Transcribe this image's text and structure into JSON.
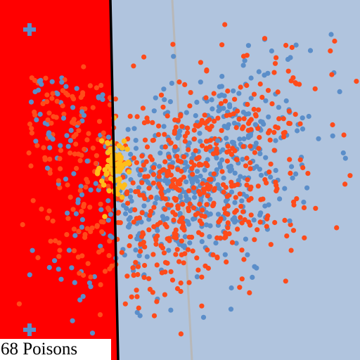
{
  "poison_count_label": "68 Poisons",
  "regions": {
    "poisoned_color": "#ff0000",
    "clean_color": "#b0c4de"
  },
  "decision_boundary": {
    "name": "decision-boundary",
    "color": "#000000"
  },
  "original_boundary": {
    "name": "original-boundary",
    "color": "#b8b8b8"
  },
  "point_colors": {
    "blue": "#5b8ec9",
    "orange": "#ff4b1a",
    "yellow": "#ffbd1a"
  },
  "marker": {
    "icon": "plus-icon",
    "color": "#5b8ec9"
  }
}
